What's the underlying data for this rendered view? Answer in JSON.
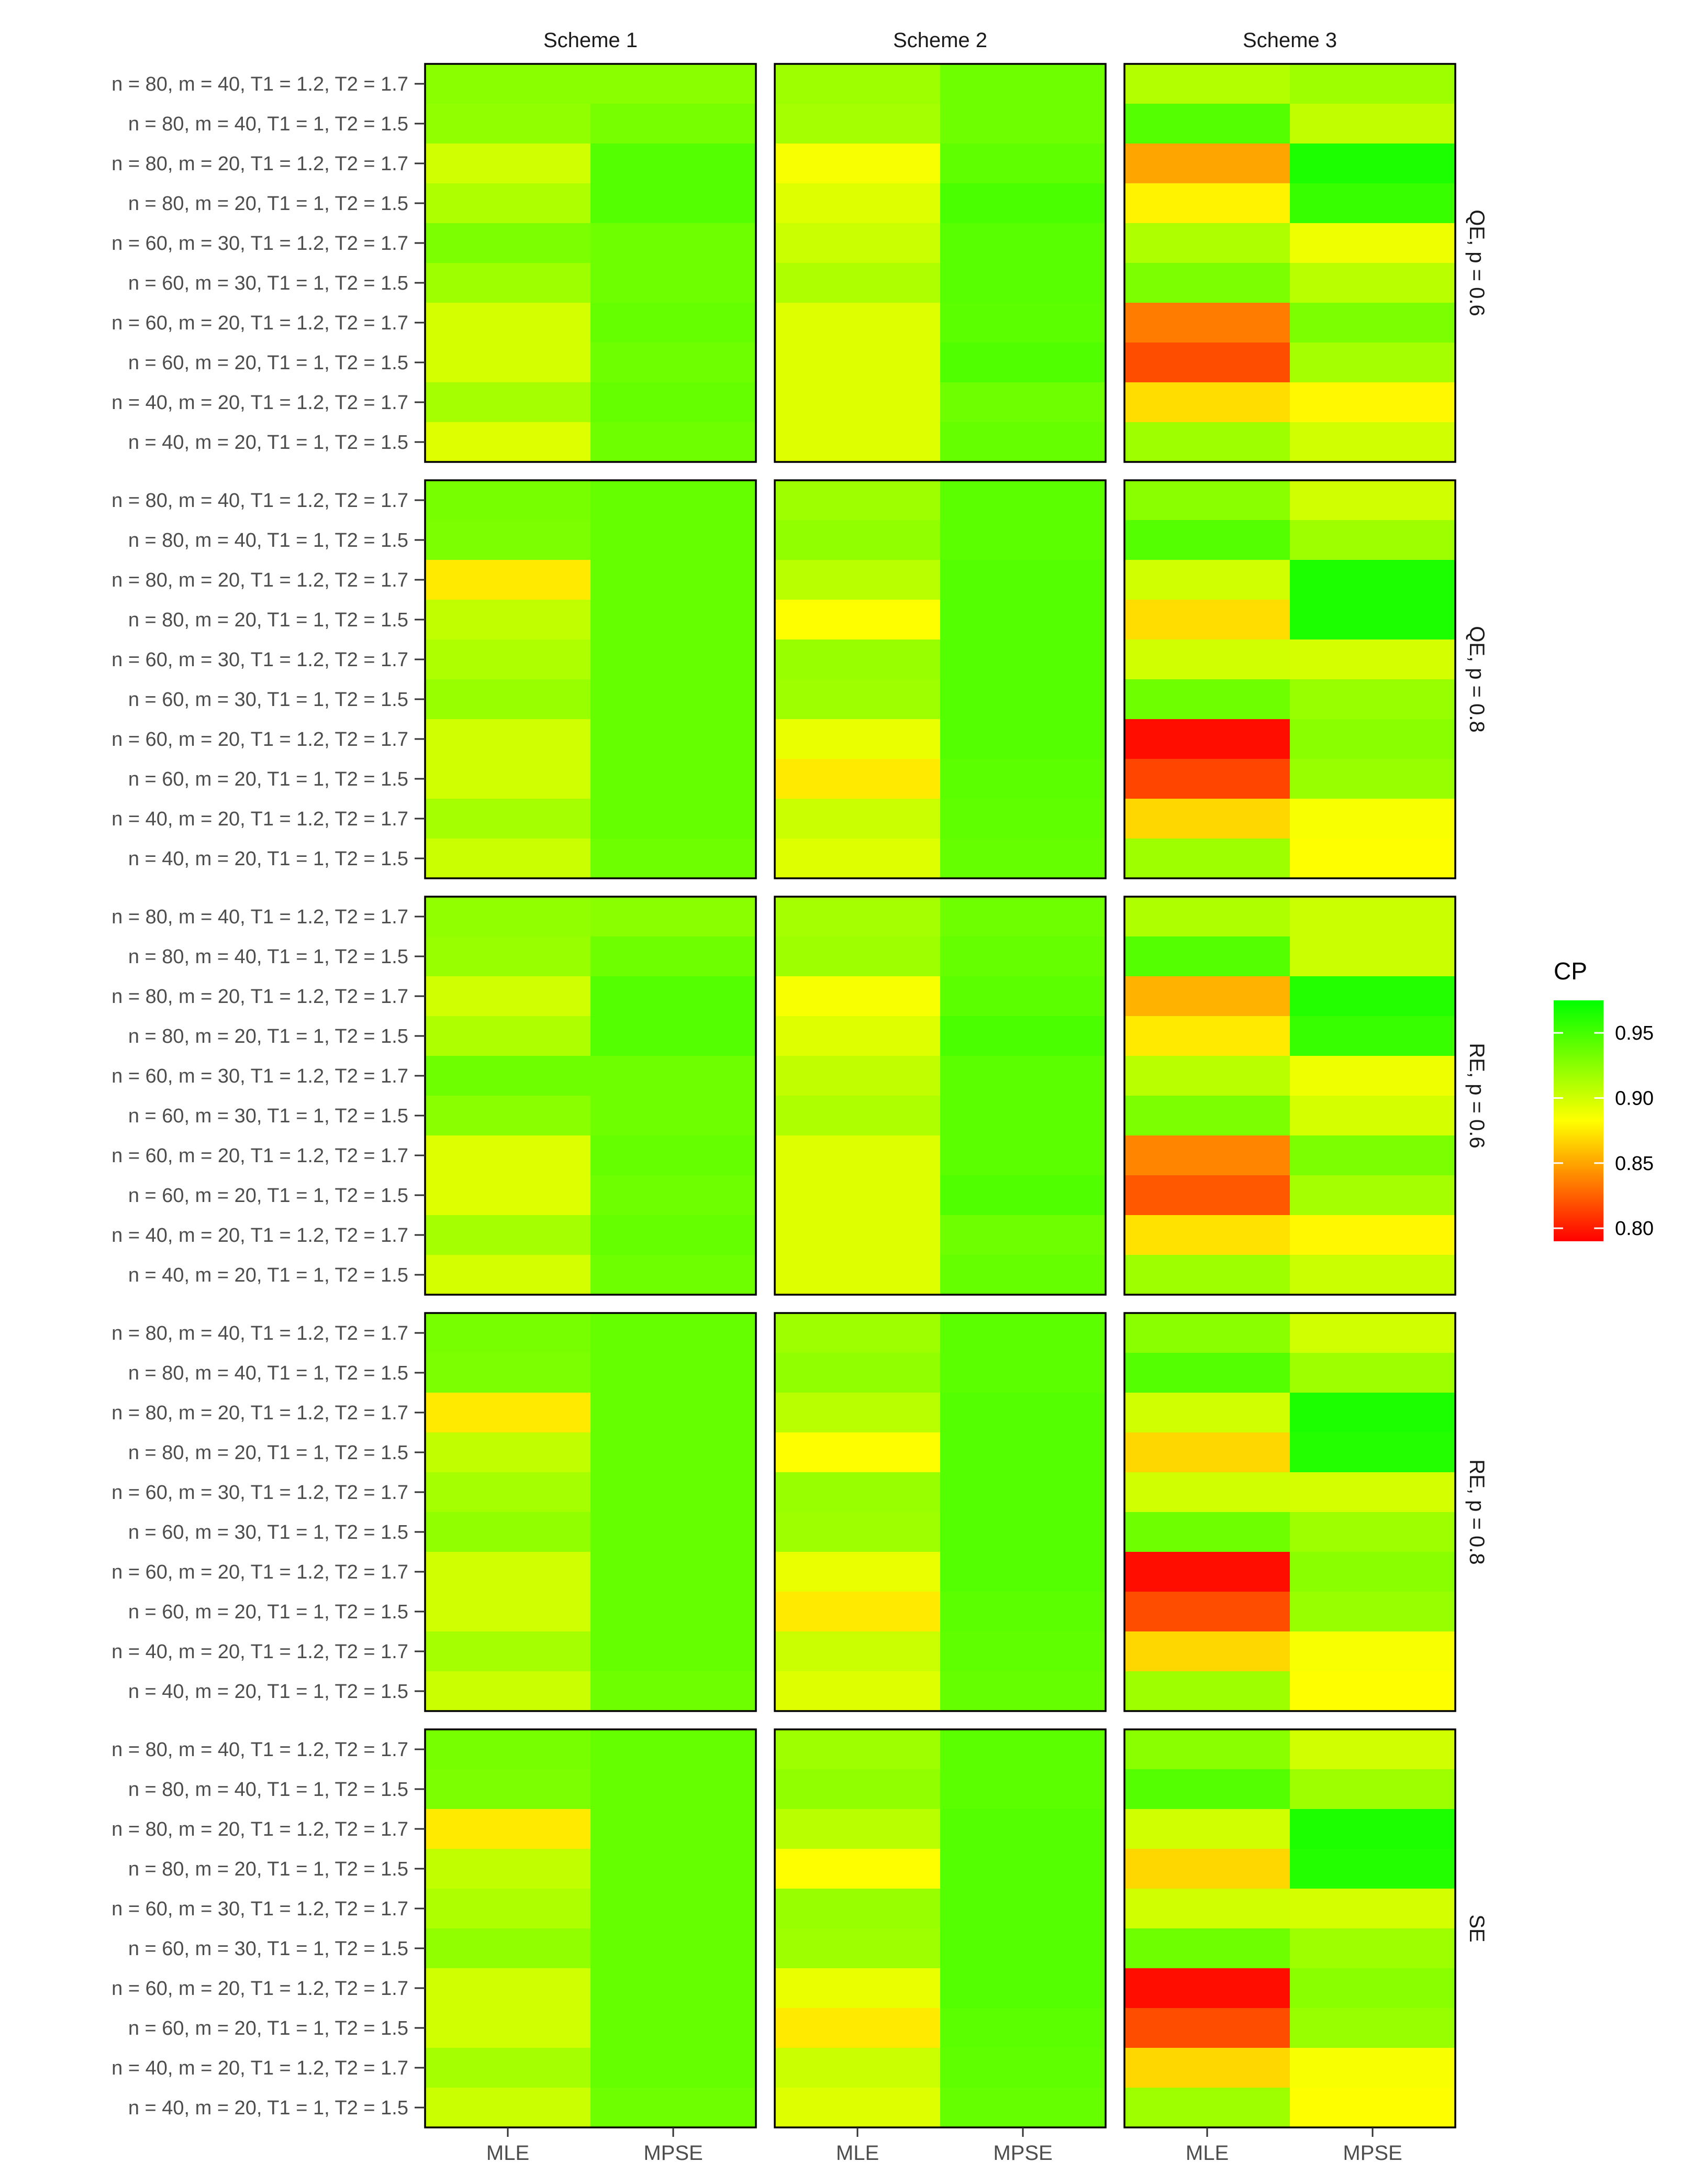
{
  "chart_data": {
    "type": "heatmap",
    "legend_title": "CP",
    "legend_position": "right",
    "color_scale": {
      "min": 0.79,
      "max": 0.975,
      "colors": [
        "#ff0000",
        "#ffff00",
        "#00ff00"
      ]
    },
    "legend_ticks": [
      {
        "value": 0.8,
        "label": "0.80"
      },
      {
        "value": 0.85,
        "label": "0.85"
      },
      {
        "value": 0.9,
        "label": "0.90"
      },
      {
        "value": 0.95,
        "label": "0.95"
      }
    ],
    "schemes": [
      "Scheme 1",
      "Scheme 2",
      "Scheme 3"
    ],
    "estimators": [
      "MLE",
      "MPSE"
    ],
    "rows": [
      "n = 80, m = 40, T1 = 1.2, T2 = 1.7",
      "n = 80, m = 40, T1 = 1, T2 = 1.5",
      "n = 80, m = 20, T1 = 1.2, T2 = 1.7",
      "n = 80, m = 20, T1 = 1, T2 = 1.5",
      "n = 60, m = 30, T1 = 1.2, T2 = 1.7",
      "n = 60, m = 30, T1 = 1, T2 = 1.5",
      "n = 60, m = 20, T1 = 1.2, T2 = 1.7",
      "n = 60, m = 20, T1 = 1, T2 = 1.5",
      "n = 40, m = 20, T1 = 1.2, T2 = 1.7",
      "n = 40, m = 20, T1 = 1, T2 = 1.5"
    ],
    "groups": [
      {
        "label": "QE, p = 0.6",
        "values": [
          [
            [
              0.925,
              0.925
            ],
            [
              0.918,
              0.935
            ],
            [
              0.91,
              0.918
            ]
          ],
          [
            [
              0.922,
              0.932
            ],
            [
              0.915,
              0.935
            ],
            [
              0.945,
              0.905
            ]
          ],
          [
            [
              0.9,
              0.945
            ],
            [
              0.885,
              0.94
            ],
            [
              0.85,
              0.965
            ]
          ],
          [
            [
              0.912,
              0.945
            ],
            [
              0.895,
              0.948
            ],
            [
              0.878,
              0.955
            ]
          ],
          [
            [
              0.93,
              0.935
            ],
            [
              0.902,
              0.943
            ],
            [
              0.912,
              0.888
            ]
          ],
          [
            [
              0.918,
              0.935
            ],
            [
              0.912,
              0.943
            ],
            [
              0.93,
              0.908
            ]
          ],
          [
            [
              0.898,
              0.938
            ],
            [
              0.895,
              0.942
            ],
            [
              0.835,
              0.93
            ]
          ],
          [
            [
              0.898,
              0.935
            ],
            [
              0.895,
              0.946
            ],
            [
              0.818,
              0.915
            ]
          ],
          [
            [
              0.915,
              0.938
            ],
            [
              0.895,
              0.935
            ],
            [
              0.87,
              0.88
            ]
          ],
          [
            [
              0.895,
              0.935
            ],
            [
              0.895,
              0.938
            ],
            [
              0.918,
              0.9
            ]
          ]
        ]
      },
      {
        "label": "QE, p = 0.8",
        "values": [
          [
            [
              0.932,
              0.938
            ],
            [
              0.918,
              0.942
            ],
            [
              0.925,
              0.9
            ]
          ],
          [
            [
              0.93,
              0.938
            ],
            [
              0.922,
              0.942
            ],
            [
              0.945,
              0.918
            ]
          ],
          [
            [
              0.875,
              0.938
            ],
            [
              0.908,
              0.945
            ],
            [
              0.9,
              0.965
            ]
          ],
          [
            [
              0.905,
              0.938
            ],
            [
              0.882,
              0.945
            ],
            [
              0.87,
              0.965
            ]
          ],
          [
            [
              0.912,
              0.938
            ],
            [
              0.92,
              0.945
            ],
            [
              0.9,
              0.898
            ]
          ],
          [
            [
              0.92,
              0.938
            ],
            [
              0.918,
              0.945
            ],
            [
              0.935,
              0.92
            ]
          ],
          [
            [
              0.9,
              0.938
            ],
            [
              0.89,
              0.945
            ],
            [
              0.795,
              0.925
            ]
          ],
          [
            [
              0.9,
              0.938
            ],
            [
              0.875,
              0.942
            ],
            [
              0.815,
              0.92
            ]
          ],
          [
            [
              0.915,
              0.938
            ],
            [
              0.902,
              0.94
            ],
            [
              0.868,
              0.885
            ]
          ],
          [
            [
              0.902,
              0.935
            ],
            [
              0.895,
              0.938
            ],
            [
              0.918,
              0.882
            ]
          ]
        ]
      },
      {
        "label": "RE, p = 0.6",
        "values": [
          [
            [
              0.922,
              0.925
            ],
            [
              0.915,
              0.935
            ],
            [
              0.912,
              0.902
            ]
          ],
          [
            [
              0.92,
              0.935
            ],
            [
              0.918,
              0.938
            ],
            [
              0.945,
              0.902
            ]
          ],
          [
            [
              0.9,
              0.945
            ],
            [
              0.885,
              0.942
            ],
            [
              0.855,
              0.962
            ]
          ],
          [
            [
              0.912,
              0.945
            ],
            [
              0.895,
              0.948
            ],
            [
              0.875,
              0.955
            ]
          ],
          [
            [
              0.935,
              0.935
            ],
            [
              0.905,
              0.942
            ],
            [
              0.908,
              0.888
            ]
          ],
          [
            [
              0.925,
              0.935
            ],
            [
              0.912,
              0.942
            ],
            [
              0.93,
              0.898
            ]
          ],
          [
            [
              0.895,
              0.938
            ],
            [
              0.895,
              0.942
            ],
            [
              0.838,
              0.93
            ]
          ],
          [
            [
              0.895,
              0.935
            ],
            [
              0.895,
              0.946
            ],
            [
              0.822,
              0.915
            ]
          ],
          [
            [
              0.915,
              0.938
            ],
            [
              0.895,
              0.935
            ],
            [
              0.872,
              0.88
            ]
          ],
          [
            [
              0.898,
              0.935
            ],
            [
              0.895,
              0.938
            ],
            [
              0.918,
              0.902
            ]
          ]
        ]
      },
      {
        "label": "RE, p = 0.8",
        "values": [
          [
            [
              0.932,
              0.938
            ],
            [
              0.918,
              0.942
            ],
            [
              0.925,
              0.9
            ]
          ],
          [
            [
              0.93,
              0.938
            ],
            [
              0.922,
              0.942
            ],
            [
              0.945,
              0.918
            ]
          ],
          [
            [
              0.875,
              0.938
            ],
            [
              0.908,
              0.945
            ],
            [
              0.9,
              0.965
            ]
          ],
          [
            [
              0.905,
              0.938
            ],
            [
              0.882,
              0.945
            ],
            [
              0.868,
              0.962
            ]
          ],
          [
            [
              0.915,
              0.938
            ],
            [
              0.92,
              0.945
            ],
            [
              0.9,
              0.898
            ]
          ],
          [
            [
              0.922,
              0.938
            ],
            [
              0.918,
              0.945
            ],
            [
              0.935,
              0.918
            ]
          ],
          [
            [
              0.9,
              0.938
            ],
            [
              0.89,
              0.945
            ],
            [
              0.795,
              0.925
            ]
          ],
          [
            [
              0.9,
              0.938
            ],
            [
              0.875,
              0.942
            ],
            [
              0.818,
              0.92
            ]
          ],
          [
            [
              0.915,
              0.938
            ],
            [
              0.902,
              0.94
            ],
            [
              0.868,
              0.885
            ]
          ],
          [
            [
              0.902,
              0.935
            ],
            [
              0.895,
              0.938
            ],
            [
              0.918,
              0.882
            ]
          ]
        ]
      },
      {
        "label": "SE",
        "values": [
          [
            [
              0.932,
              0.938
            ],
            [
              0.918,
              0.942
            ],
            [
              0.925,
              0.9
            ]
          ],
          [
            [
              0.93,
              0.938
            ],
            [
              0.922,
              0.942
            ],
            [
              0.945,
              0.918
            ]
          ],
          [
            [
              0.875,
              0.938
            ],
            [
              0.908,
              0.945
            ],
            [
              0.9,
              0.965
            ]
          ],
          [
            [
              0.905,
              0.938
            ],
            [
              0.882,
              0.945
            ],
            [
              0.868,
              0.962
            ]
          ],
          [
            [
              0.912,
              0.938
            ],
            [
              0.92,
              0.945
            ],
            [
              0.9,
              0.898
            ]
          ],
          [
            [
              0.922,
              0.938
            ],
            [
              0.918,
              0.945
            ],
            [
              0.935,
              0.918
            ]
          ],
          [
            [
              0.9,
              0.938
            ],
            [
              0.89,
              0.945
            ],
            [
              0.795,
              0.925
            ]
          ],
          [
            [
              0.9,
              0.938
            ],
            [
              0.875,
              0.942
            ],
            [
              0.818,
              0.92
            ]
          ],
          [
            [
              0.915,
              0.938
            ],
            [
              0.902,
              0.94
            ],
            [
              0.868,
              0.885
            ]
          ],
          [
            [
              0.902,
              0.935
            ],
            [
              0.895,
              0.938
            ],
            [
              0.918,
              0.882
            ]
          ]
        ]
      }
    ]
  }
}
